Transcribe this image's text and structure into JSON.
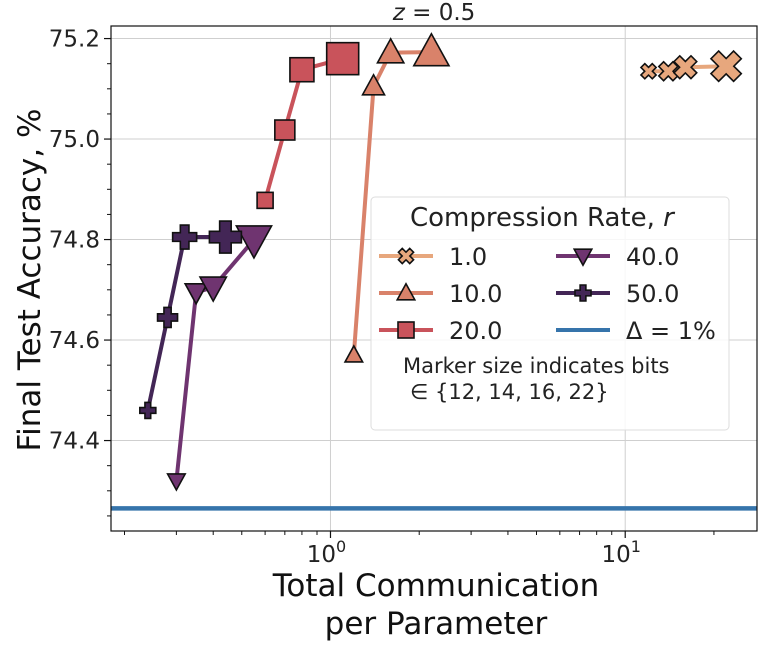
{
  "chart_data": {
    "type": "line",
    "title": "z = 0.5",
    "xlabel_lines": [
      "Total Communication",
      "per Parameter"
    ],
    "ylabel": "Final Test Accuracy, %",
    "xscale": "log",
    "xlim": [
      0.18,
      28
    ],
    "ylim": [
      74.22,
      75.225
    ],
    "x_ticks": [
      {
        "value": 1,
        "label": "10^0"
      },
      {
        "value": 10,
        "label": "10^1"
      }
    ],
    "y_ticks": [
      {
        "value": 74.4,
        "label": "74.4"
      },
      {
        "value": 74.6,
        "label": "74.6"
      },
      {
        "value": 74.8,
        "label": "74.8"
      },
      {
        "value": 75.0,
        "label": "75.0"
      },
      {
        "value": 75.2,
        "label": "75.2"
      }
    ],
    "grid": true,
    "legend_position": "center-right",
    "legend_title": "Compression Rate, r",
    "marker_size_labels": [
      "12",
      "14",
      "16",
      "22"
    ],
    "series": [
      {
        "name": "1.0",
        "marker": "x-marker",
        "color": "#e7a77d",
        "points": [
          {
            "x": 12,
            "y": 75.135
          },
          {
            "x": 14,
            "y": 75.135
          },
          {
            "x": 16,
            "y": 75.143
          },
          {
            "x": 22,
            "y": 75.145
          }
        ]
      },
      {
        "name": "10.0",
        "marker": "triangle-up-marker",
        "color": "#d9826a",
        "points": [
          {
            "x": 1.2,
            "y": 74.57
          },
          {
            "x": 1.4,
            "y": 75.105
          },
          {
            "x": 1.6,
            "y": 75.172
          },
          {
            "x": 2.2,
            "y": 75.173
          }
        ]
      },
      {
        "name": "20.0",
        "marker": "square-marker",
        "color": "#c9535b",
        "points": [
          {
            "x": 0.6,
            "y": 74.878
          },
          {
            "x": 0.7,
            "y": 75.018
          },
          {
            "x": 0.8,
            "y": 75.138
          },
          {
            "x": 1.1,
            "y": 75.16
          }
        ]
      },
      {
        "name": "40.0",
        "marker": "triangle-down-marker",
        "color": "#6f3470",
        "points": [
          {
            "x": 0.3,
            "y": 74.32
          },
          {
            "x": 0.35,
            "y": 74.695
          },
          {
            "x": 0.4,
            "y": 74.705
          },
          {
            "x": 0.55,
            "y": 74.8
          }
        ]
      },
      {
        "name": "50.0",
        "marker": "plus-marker",
        "color": "#432656",
        "points": [
          {
            "x": 0.24,
            "y": 74.46
          },
          {
            "x": 0.28,
            "y": 74.645
          },
          {
            "x": 0.32,
            "y": 74.805
          },
          {
            "x": 0.44,
            "y": 74.805
          }
        ]
      }
    ],
    "reference_line": {
      "name": "Δ = 1%",
      "y": 74.265,
      "color": "#3674ab"
    },
    "annotation": {
      "line1": "Marker size indicates bits",
      "line2": "∈ {12, 14, 16, 22}"
    }
  }
}
